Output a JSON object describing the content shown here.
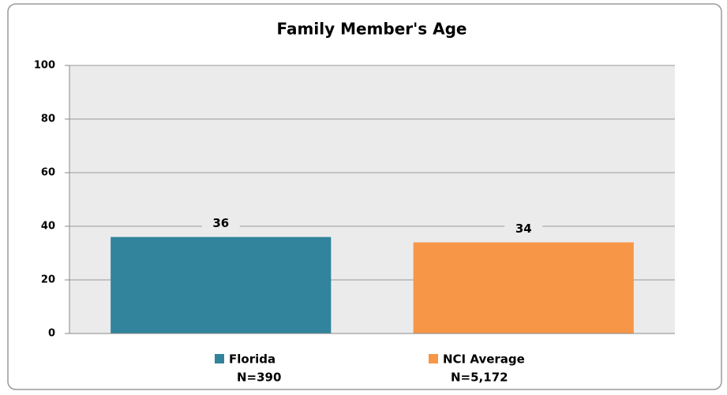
{
  "chart_data": {
    "type": "bar",
    "title": "Family Member's Age",
    "categories": [
      "Florida",
      "NCI Average"
    ],
    "category_notes": [
      "N=390",
      "N=5,172"
    ],
    "values": [
      36,
      34
    ],
    "colors": [
      "#31849b",
      "#f79646"
    ],
    "ylim": [
      0,
      100
    ],
    "yticks": [
      0,
      20,
      40,
      60,
      80,
      100
    ],
    "grid": true
  }
}
